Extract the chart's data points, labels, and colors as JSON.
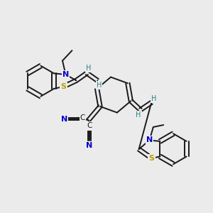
{
  "bg_color": "#ebebeb",
  "bond_color": "#1a1a1a",
  "S_color": "#b8a000",
  "N_color": "#0000cc",
  "H_color": "#2a8080",
  "C_color": "#1a1a1a",
  "line_width": 1.4,
  "figsize": [
    3.0,
    3.0
  ],
  "dpi": 100,
  "xlim": [
    0,
    10
  ],
  "ylim": [
    0,
    10
  ]
}
